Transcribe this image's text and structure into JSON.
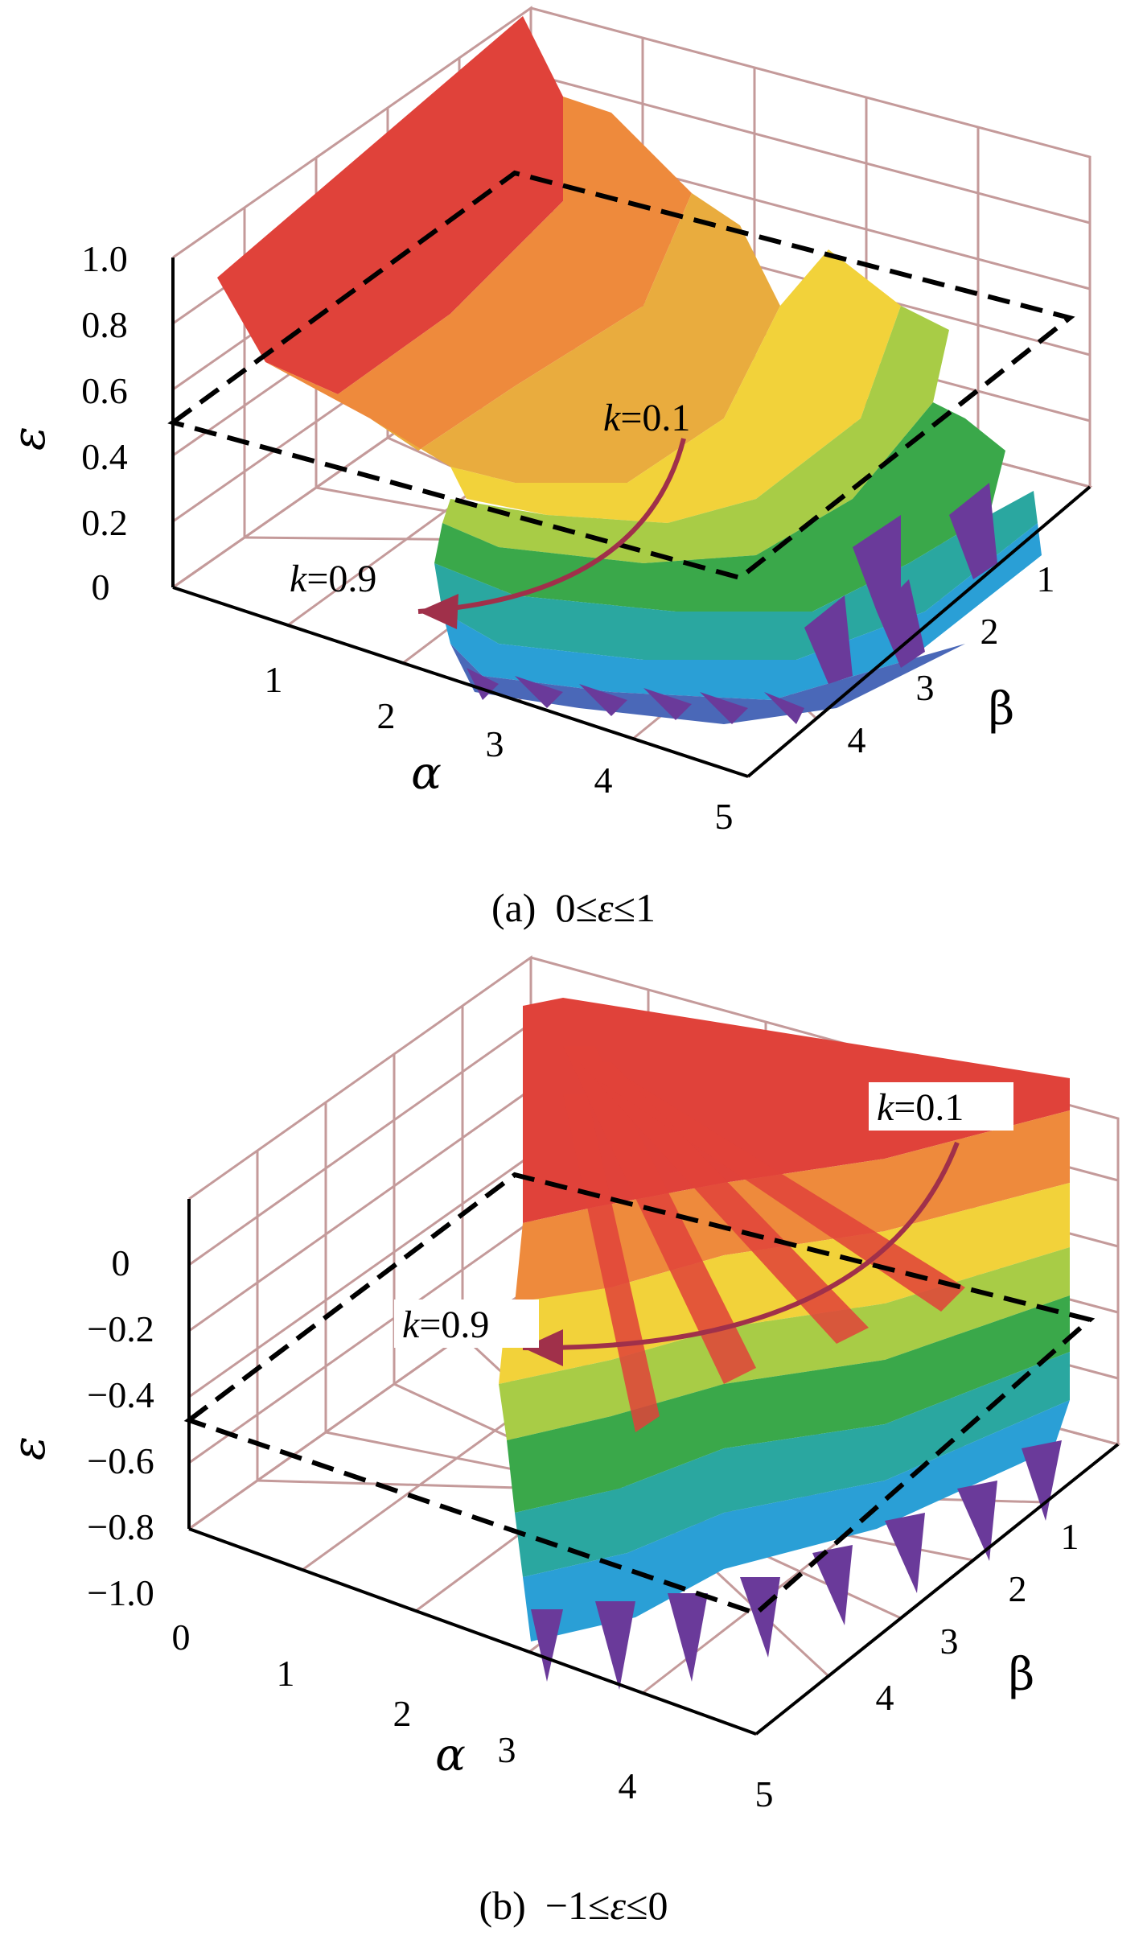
{
  "chart_data": [
    {
      "type": "surface3d",
      "panel": "a",
      "caption": {
        "label": "(a)",
        "condition_left": "0≤",
        "symbol": "ε",
        "condition_right": "≤1"
      },
      "xlabel": "α",
      "ylabel": "β",
      "zlabel": "ε",
      "xlim": [
        0,
        5
      ],
      "ylim": [
        0,
        5
      ],
      "zlim": [
        0,
        1.0
      ],
      "x_ticks": [
        "1",
        "2",
        "3",
        "4",
        "5"
      ],
      "y_ticks": [
        "1",
        "2",
        "3",
        "4"
      ],
      "z_ticks": [
        "0",
        "0.2",
        "0.4",
        "0.6",
        "0.8",
        "1.0"
      ],
      "z_values": [
        0,
        0.2,
        0.4,
        0.6,
        0.8,
        1.0
      ],
      "grid": true,
      "dashed_plane_level": 0.5,
      "annotations": [
        {
          "k": "k",
          "text": "=0.1"
        },
        {
          "k": "k",
          "text": "=0.9"
        }
      ],
      "colors": {
        "arrow": "#a0304a",
        "surface_high": "#e0423a",
        "surface_mid": "#f2d23a",
        "surface_low": "#6a3a9a",
        "grid": "#c49a9a"
      }
    },
    {
      "type": "surface3d",
      "panel": "b",
      "caption": {
        "label": "(b)",
        "condition_left": "−1≤",
        "symbol": "ε",
        "condition_right": "≤0"
      },
      "xlabel": "α",
      "ylabel": "β",
      "zlabel": "ε",
      "xlim": [
        0,
        5
      ],
      "ylim": [
        0,
        5
      ],
      "zlim": [
        -1.0,
        0
      ],
      "x_ticks": [
        "0",
        "1",
        "2",
        "3",
        "4",
        "5"
      ],
      "y_ticks": [
        "1",
        "2",
        "3",
        "4"
      ],
      "z_ticks": [
        "0",
        "−0.2",
        "−0.4",
        "−0.6",
        "−0.8",
        "−1.0"
      ],
      "z_values": [
        0,
        -0.2,
        -0.4,
        -0.6,
        -0.8,
        -1.0
      ],
      "grid": true,
      "dashed_plane_level": -0.5,
      "annotations": [
        {
          "k": "k",
          "text": "=0.1"
        },
        {
          "k": "k",
          "text": "=0.9"
        }
      ],
      "colors": {
        "arrow": "#a0304a",
        "surface_high": "#e0423a",
        "surface_mid": "#f2d23a",
        "surface_low": "#6a3a9a",
        "grid": "#c49a9a"
      }
    }
  ]
}
